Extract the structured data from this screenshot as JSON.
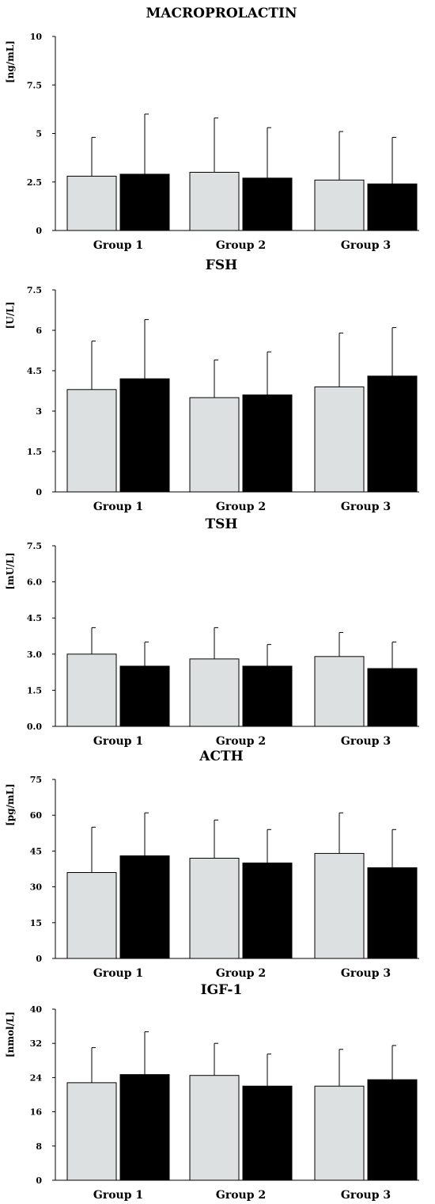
{
  "colors": {
    "series_a": "#dde0e0",
    "series_b": "#000000"
  },
  "chart_data": [
    {
      "type": "bar",
      "title": "MACROPROLACTIN",
      "ylabel": "[ng/mL]",
      "categories": [
        "Group 1",
        "Group 2",
        "Group 3"
      ],
      "ylim": [
        0,
        10
      ],
      "yticks": [
        "0",
        "2.5",
        "5",
        "7.5",
        "10"
      ],
      "series": [
        {
          "values": [
            2.8,
            3.0,
            2.6
          ],
          "errors": [
            2.0,
            2.8,
            2.5
          ]
        },
        {
          "values": [
            2.9,
            2.7,
            2.4
          ],
          "errors": [
            3.1,
            2.6,
            2.4
          ]
        }
      ]
    },
    {
      "type": "bar",
      "title": "FSH",
      "ylabel": "[U/L]",
      "categories": [
        "Group 1",
        "Group 2",
        "Group 3"
      ],
      "ylim": [
        0,
        7.5
      ],
      "yticks": [
        "0",
        "1.5",
        "3",
        "4.5",
        "6",
        "7.5"
      ],
      "series": [
        {
          "values": [
            3.8,
            3.5,
            3.9
          ],
          "errors": [
            1.8,
            1.4,
            2.0
          ]
        },
        {
          "values": [
            4.2,
            3.6,
            4.3
          ],
          "errors": [
            2.2,
            1.6,
            1.8
          ]
        }
      ]
    },
    {
      "type": "bar",
      "title": "TSH",
      "ylabel": "[mU/L]",
      "categories": [
        "Group 1",
        "Group 2",
        "Group 3"
      ],
      "ylim": [
        0,
        7.5
      ],
      "yticks": [
        "0.0",
        "1.5",
        "3.0",
        "4.5",
        "6.0",
        "7.5"
      ],
      "series": [
        {
          "values": [
            3.0,
            2.8,
            2.9
          ],
          "errors": [
            1.1,
            1.3,
            1.0
          ]
        },
        {
          "values": [
            2.5,
            2.5,
            2.4
          ],
          "errors": [
            1.0,
            0.9,
            1.1
          ]
        }
      ]
    },
    {
      "type": "bar",
      "title": "ACTH",
      "ylabel": "[pg/mL]",
      "categories": [
        "Group 1",
        "Group 2",
        "Group 3"
      ],
      "ylim": [
        0,
        75
      ],
      "yticks": [
        "0",
        "15",
        "30",
        "45",
        "60",
        "75"
      ],
      "series": [
        {
          "values": [
            36,
            42,
            44
          ],
          "errors": [
            19,
            16,
            17
          ]
        },
        {
          "values": [
            43,
            40,
            38
          ],
          "errors": [
            18,
            14,
            16
          ]
        }
      ]
    },
    {
      "type": "bar",
      "title": "IGF-1",
      "ylabel": "[nmol/L]",
      "categories": [
        "Group 1",
        "Group 2",
        "Group 3"
      ],
      "ylim": [
        0,
        40
      ],
      "yticks": [
        "0",
        "8",
        "16",
        "24",
        "32",
        "40"
      ],
      "series": [
        {
          "values": [
            22.8,
            24.5,
            22.0
          ],
          "errors": [
            8.2,
            7.5,
            8.6
          ]
        },
        {
          "values": [
            24.7,
            22.0,
            23.5
          ],
          "errors": [
            10.0,
            7.5,
            8.0
          ]
        }
      ]
    }
  ]
}
